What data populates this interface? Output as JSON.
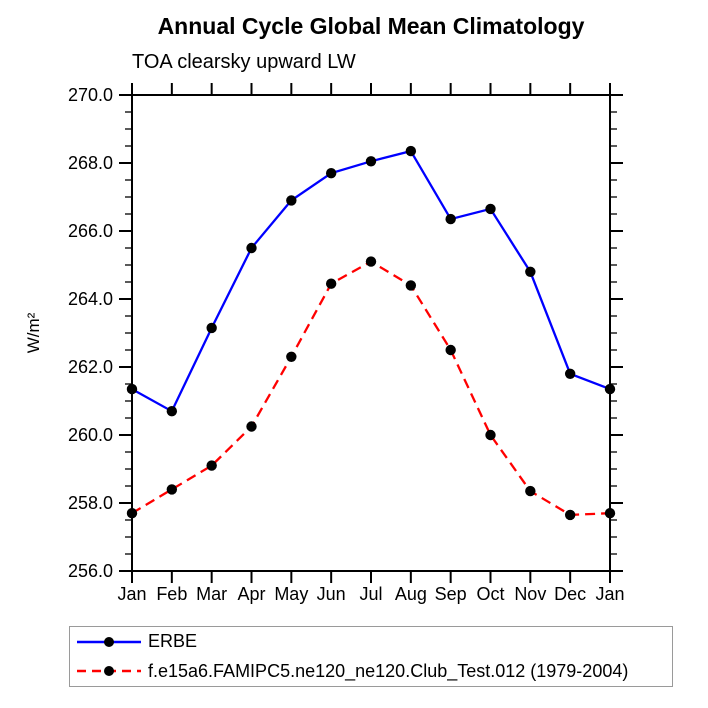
{
  "chart_data": {
    "type": "line",
    "title": "Annual Cycle Global Mean Climatology",
    "subtitle": "TOA clearsky upward LW",
    "ylabel": "W/m²",
    "x_tick_labels": [
      "Jan",
      "Feb",
      "Mar",
      "Apr",
      "May",
      "Jun",
      "Jul",
      "Aug",
      "Sep",
      "Oct",
      "Nov",
      "Dec",
      "Jan"
    ],
    "ylim": [
      256.0,
      270.0
    ],
    "y_major_step": 2.0,
    "y_minor_step": 0.5,
    "y_tick_labels": [
      "256.0",
      "258.0",
      "260.0",
      "262.0",
      "264.0",
      "266.0",
      "268.0",
      "270.0"
    ],
    "grid": false,
    "axis_color": "#000000",
    "legend_position": "bottom-left-box",
    "marker": {
      "shape": "circle",
      "color": "#000000",
      "radius": 5.2
    },
    "series": [
      {
        "name": "ERBE",
        "color": "#0000ff",
        "style": "solid",
        "values": [
          261.35,
          260.7,
          263.15,
          265.5,
          266.9,
          267.7,
          268.05,
          268.35,
          266.35,
          266.65,
          264.8,
          261.8,
          261.35
        ]
      },
      {
        "name": "f.e15a6.FAMIPC5.ne120_ne120.Club_Test.012 (1979-2004)",
        "color": "#ff0000",
        "style": "dashed",
        "values": [
          257.7,
          258.4,
          259.1,
          260.25,
          262.3,
          264.45,
          265.1,
          264.4,
          262.5,
          260.0,
          258.35,
          257.65,
          257.7
        ]
      }
    ]
  }
}
